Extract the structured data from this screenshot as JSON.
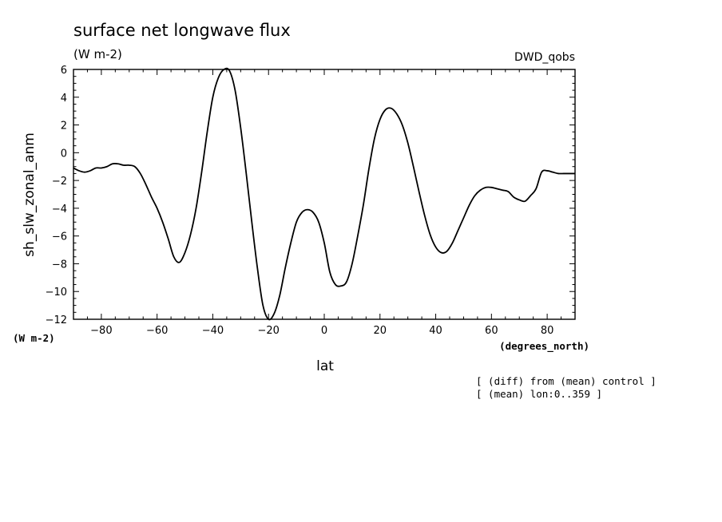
{
  "chart_data": {
    "type": "line",
    "title": "surface net longwave flux",
    "units": "(W m-2)",
    "run_label": "DWD_qobs",
    "xlabel": "lat",
    "ylabel": "sh_slw_zonal_anm",
    "x_units": "(degrees_north)",
    "y_units": "(W m-2)",
    "xlim": [
      -90,
      90
    ],
    "ylim": [
      -12,
      6
    ],
    "x_ticks": [
      -80,
      -60,
      -40,
      -20,
      0,
      20,
      40,
      60,
      80
    ],
    "y_ticks": [
      -12,
      -10,
      -8,
      -6,
      -4,
      -2,
      0,
      2,
      4,
      6
    ],
    "grid": false,
    "notes": [
      "[ (diff) from (mean) control ]",
      "[ (mean) lon:0..359 ]"
    ],
    "series": [
      {
        "name": "",
        "x": [
          -90,
          -88,
          -86,
          -84,
          -82,
          -80,
          -78,
          -76,
          -74,
          -72,
          -70,
          -68,
          -66,
          -64,
          -62,
          -60,
          -58,
          -56,
          -54,
          -52,
          -50,
          -48,
          -46,
          -44,
          -42,
          -40,
          -38,
          -36,
          -34,
          -32,
          -30,
          -28,
          -26,
          -24,
          -22,
          -20,
          -18,
          -16,
          -14,
          -12,
          -10,
          -8,
          -6,
          -4,
          -2,
          0,
          2,
          4,
          6,
          8,
          10,
          12,
          14,
          16,
          18,
          20,
          22,
          24,
          26,
          28,
          30,
          32,
          34,
          36,
          38,
          40,
          42,
          44,
          46,
          48,
          50,
          52,
          54,
          56,
          58,
          60,
          62,
          64,
          66,
          68,
          70,
          72,
          74,
          76,
          78,
          80,
          82,
          84,
          86,
          88,
          90
        ],
        "y": [
          -1.1,
          -1.3,
          -1.4,
          -1.3,
          -1.1,
          -1.1,
          -1.0,
          -0.8,
          -0.8,
          -0.9,
          -0.9,
          -1.0,
          -1.5,
          -2.3,
          -3.2,
          -4.0,
          -5.0,
          -6.2,
          -7.5,
          -7.9,
          -7.2,
          -5.9,
          -4.0,
          -1.4,
          1.5,
          4.0,
          5.4,
          6.0,
          5.9,
          4.5,
          1.8,
          -1.5,
          -5.0,
          -8.3,
          -11.0,
          -12.0,
          -11.6,
          -10.3,
          -8.3,
          -6.5,
          -5.0,
          -4.3,
          -4.1,
          -4.3,
          -5.0,
          -6.5,
          -8.6,
          -9.5,
          -9.6,
          -9.3,
          -8.0,
          -6.0,
          -3.8,
          -1.2,
          1.0,
          2.4,
          3.1,
          3.2,
          2.8,
          2.0,
          0.7,
          -1.0,
          -2.8,
          -4.5,
          -5.9,
          -6.8,
          -7.2,
          -7.1,
          -6.5,
          -5.6,
          -4.7,
          -3.8,
          -3.1,
          -2.7,
          -2.5,
          -2.5,
          -2.6,
          -2.7,
          -2.8,
          -3.2,
          -3.4,
          -3.5,
          -3.1,
          -2.6,
          -1.4,
          -1.3,
          -1.4,
          -1.5,
          -1.5,
          -1.5,
          -1.5
        ]
      }
    ]
  }
}
